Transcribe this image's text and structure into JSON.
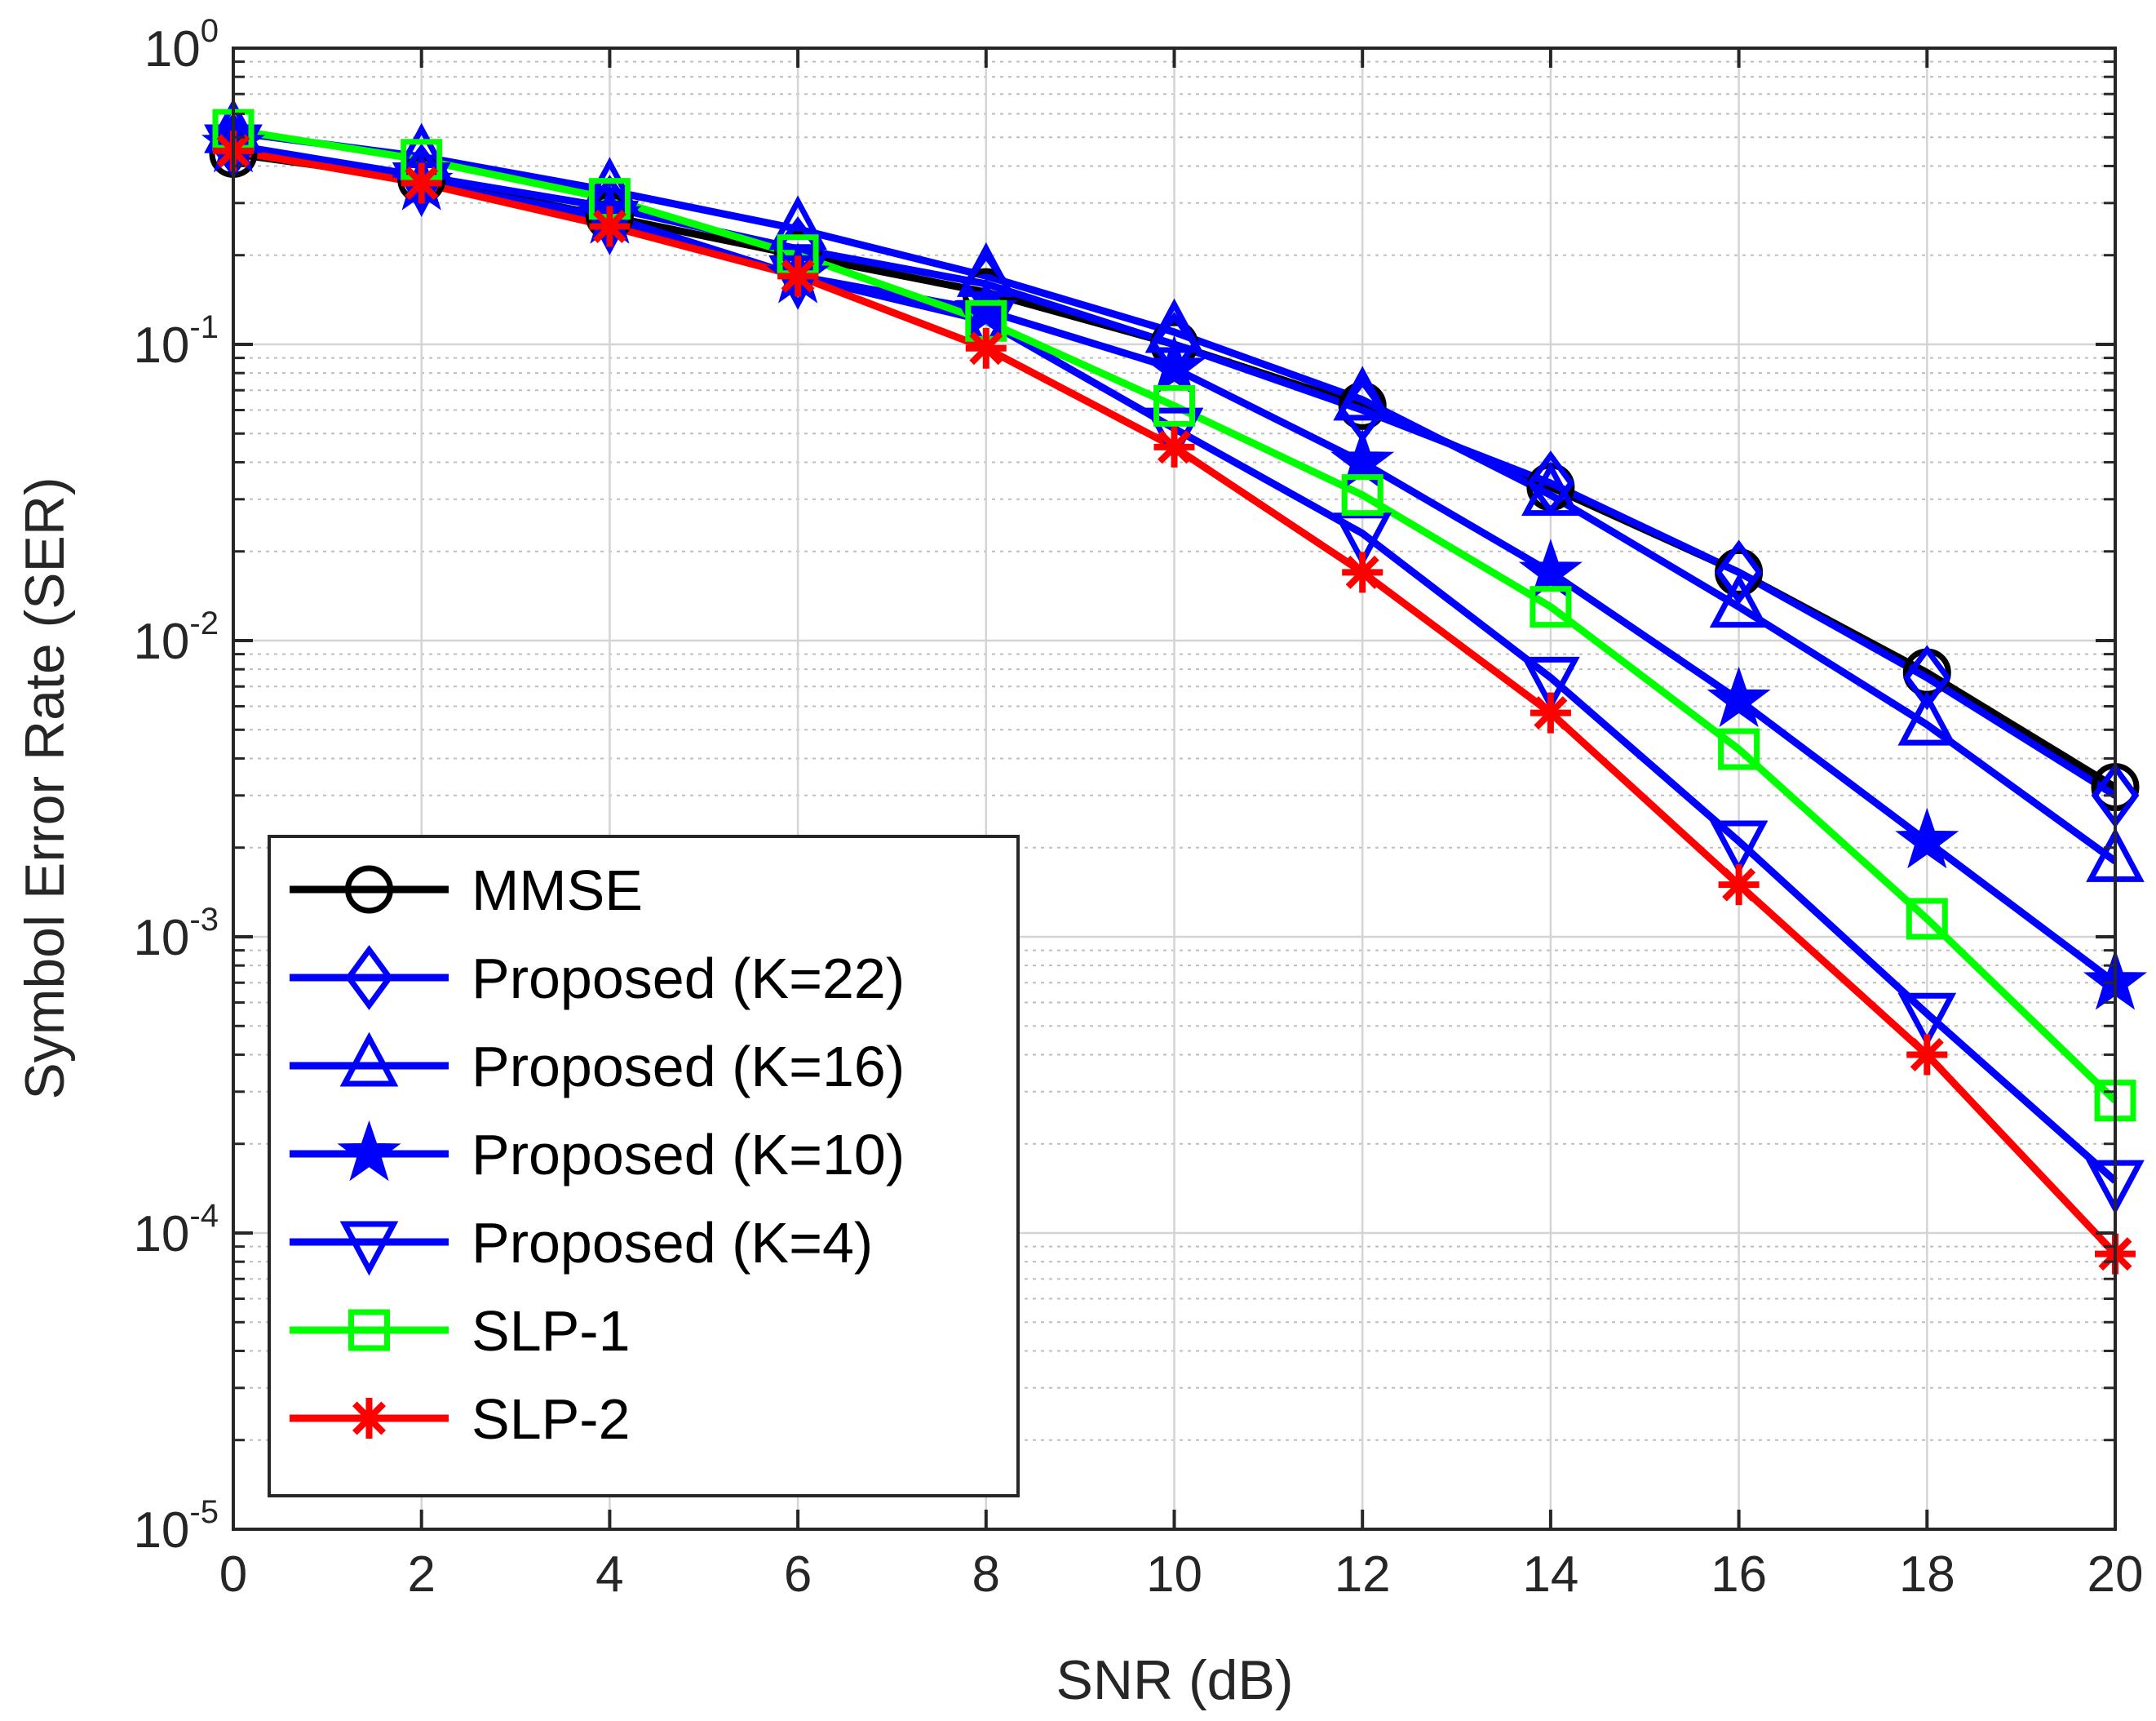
{
  "chart_data": {
    "type": "line",
    "title": "",
    "xlabel": "SNR (dB)",
    "ylabel": "Symbol Error Rate (SER)",
    "xlim": [
      0,
      20
    ],
    "ylim": [
      1e-05,
      1
    ],
    "yscale": "log",
    "grid": true,
    "legend_position": "bottom-left",
    "x": [
      0,
      2,
      4,
      6,
      8,
      10,
      12,
      14,
      16,
      18,
      20
    ],
    "x_tick_labels": [
      "0",
      "2",
      "4",
      "6",
      "8",
      "10",
      "12",
      "14",
      "16",
      "18",
      "20"
    ],
    "y_ticks": [
      {
        "value": 1,
        "base": "10",
        "exp": "0"
      },
      {
        "value": 0.1,
        "base": "10",
        "exp": "-1"
      },
      {
        "value": 0.01,
        "base": "10",
        "exp": "-2"
      },
      {
        "value": 0.001,
        "base": "10",
        "exp": "-3"
      },
      {
        "value": 0.0001,
        "base": "10",
        "exp": "-4"
      },
      {
        "value": 1e-05,
        "base": "10",
        "exp": "-5"
      }
    ],
    "series": [
      {
        "name": "MMSE",
        "color": "#000000",
        "marker": "circle",
        "values": [
          0.44,
          0.36,
          0.27,
          0.2,
          0.15,
          0.1,
          0.062,
          0.033,
          0.017,
          0.0078,
          0.0032
        ]
      },
      {
        "name": "Proposed (K=22)",
        "color": "#0000ff",
        "marker": "diamond",
        "values": [
          0.47,
          0.37,
          0.29,
          0.21,
          0.16,
          0.1,
          0.06,
          0.034,
          0.017,
          0.0075,
          0.003
        ]
      },
      {
        "name": "Proposed (K=16)",
        "color": "#0000ff",
        "marker": "triangle-up",
        "values": [
          0.52,
          0.43,
          0.33,
          0.245,
          0.17,
          0.11,
          0.065,
          0.031,
          0.013,
          0.0052,
          0.0018
        ]
      },
      {
        "name": "Proposed (K=10)",
        "color": "#0000ff",
        "marker": "star",
        "values": [
          0.47,
          0.35,
          0.27,
          0.17,
          0.13,
          0.083,
          0.04,
          0.017,
          0.0063,
          0.0021,
          0.0007
        ]
      },
      {
        "name": "Proposed (K=4)",
        "color": "#0000ff",
        "marker": "triangle-down",
        "values": [
          0.47,
          0.35,
          0.26,
          0.17,
          0.12,
          0.052,
          0.023,
          0.0075,
          0.0021,
          0.00055,
          0.00015
        ]
      },
      {
        "name": "SLP-1",
        "color": "#00ff00",
        "marker": "square",
        "values": [
          0.53,
          0.42,
          0.31,
          0.2,
          0.12,
          0.062,
          0.031,
          0.013,
          0.0043,
          0.00115,
          0.00028
        ]
      },
      {
        "name": "SLP-2",
        "color": "#ff0000",
        "marker": "asterisk",
        "values": [
          0.45,
          0.35,
          0.25,
          0.17,
          0.097,
          0.045,
          0.017,
          0.0057,
          0.0015,
          0.0004,
          8.5e-05
        ]
      }
    ]
  }
}
